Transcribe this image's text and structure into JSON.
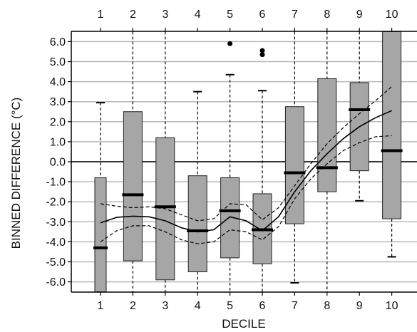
{
  "chart_data": {
    "type": "box",
    "xlabel": "DECILE",
    "ylabel": "BINNED DIFFERENCE (°C)",
    "ylim": [
      -6.5,
      6.5
    ],
    "xlim": [
      0.5,
      10.7
    ],
    "yticks": [
      6,
      5,
      4,
      3,
      2,
      1,
      0,
      -1,
      -2,
      -3,
      -4,
      -5,
      -6
    ],
    "ytick_labels": [
      "6.0",
      "5.0",
      "4.0",
      "3.0",
      "2.0",
      "1.0",
      "0.0",
      "-1.0",
      "-2.0",
      "-3.0",
      "-4.0",
      "-5.0",
      "-6.0"
    ],
    "categories": [
      "1",
      "2",
      "3",
      "4",
      "5",
      "6",
      "7",
      "8",
      "9",
      "10"
    ],
    "grid": "horizontal",
    "reference_line": 0,
    "boxes": [
      {
        "decile": 1,
        "whisker_low": -6.5,
        "q1": -6.5,
        "median": -4.3,
        "q3": -0.8,
        "whisker_high": 2.95,
        "outliers": []
      },
      {
        "decile": 2,
        "whisker_low": -6.5,
        "q1": -4.95,
        "median": -1.65,
        "q3": 2.5,
        "whisker_high": 6.5,
        "outliers": []
      },
      {
        "decile": 3,
        "whisker_low": -6.5,
        "q1": -5.9,
        "median": -2.25,
        "q3": 1.2,
        "whisker_high": 6.5,
        "outliers": []
      },
      {
        "decile": 4,
        "whisker_low": -6.5,
        "q1": -5.5,
        "median": -3.45,
        "q3": -0.7,
        "whisker_high": 3.5,
        "outliers": []
      },
      {
        "decile": 5,
        "whisker_low": -6.5,
        "q1": -4.8,
        "median": -2.45,
        "q3": -0.8,
        "whisker_high": 4.35,
        "outliers": [
          5.9
        ]
      },
      {
        "decile": 6,
        "whisker_low": -6.5,
        "q1": -5.1,
        "median": -3.4,
        "q3": -1.6,
        "whisker_high": 3.55,
        "outliers": [
          5.35,
          5.55
        ]
      },
      {
        "decile": 7,
        "whisker_low": -6.05,
        "q1": -3.1,
        "median": -0.55,
        "q3": 2.75,
        "whisker_high": 6.5,
        "outliers": []
      },
      {
        "decile": 8,
        "whisker_low": -6.5,
        "q1": -1.5,
        "median": -0.3,
        "q3": 4.15,
        "whisker_high": 6.5,
        "outliers": []
      },
      {
        "decile": 9,
        "whisker_low": -1.95,
        "q1": -0.45,
        "median": 2.6,
        "q3": 3.95,
        "whisker_high": 6.5,
        "outliers": []
      },
      {
        "decile": 10,
        "whisker_low": -4.75,
        "q1": -2.85,
        "median": 0.55,
        "q3": 6.5,
        "whisker_high": 6.5,
        "outliers": []
      }
    ],
    "fit_line": {
      "x": [
        1,
        1.5,
        2,
        2.5,
        3,
        3.5,
        4,
        4.5,
        5,
        5.5,
        6,
        6.5,
        7,
        7.5,
        8,
        8.5,
        9,
        9.5,
        10
      ],
      "y": [
        -3.05,
        -2.78,
        -2.72,
        -2.75,
        -2.95,
        -3.3,
        -3.5,
        -3.4,
        -2.75,
        -2.95,
        -3.45,
        -2.75,
        -1.5,
        -0.45,
        0.4,
        1.15,
        1.75,
        2.2,
        2.55
      ]
    },
    "confidence_upper": {
      "x": [
        1,
        1.5,
        2,
        2.5,
        3,
        3.5,
        4,
        4.5,
        5,
        5.5,
        6,
        6.5,
        7,
        7.5,
        8,
        8.5,
        9,
        9.5,
        10
      ],
      "y": [
        -2.1,
        -2.22,
        -2.3,
        -2.25,
        -2.35,
        -2.65,
        -2.95,
        -2.85,
        -2.1,
        -2.15,
        -2.9,
        -2.3,
        -1.2,
        -0.1,
        0.9,
        1.7,
        2.4,
        3.05,
        3.75
      ]
    },
    "confidence_lower": {
      "x": [
        1,
        1.5,
        2,
        2.5,
        3,
        3.5,
        4,
        4.5,
        5,
        5.5,
        6,
        6.5,
        7,
        7.5,
        8,
        8.5,
        9,
        9.5,
        10
      ],
      "y": [
        -4.0,
        -3.45,
        -3.2,
        -3.2,
        -3.5,
        -3.9,
        -4.1,
        -4.0,
        -3.4,
        -3.5,
        -3.9,
        -3.25,
        -1.85,
        -0.85,
        -0.1,
        0.55,
        0.95,
        1.25,
        1.3
      ]
    },
    "colors": {
      "box_fill": "#a6a6a6",
      "box_stroke": "#222222",
      "grid": "#b8b8b8",
      "axis": "#000000"
    }
  }
}
